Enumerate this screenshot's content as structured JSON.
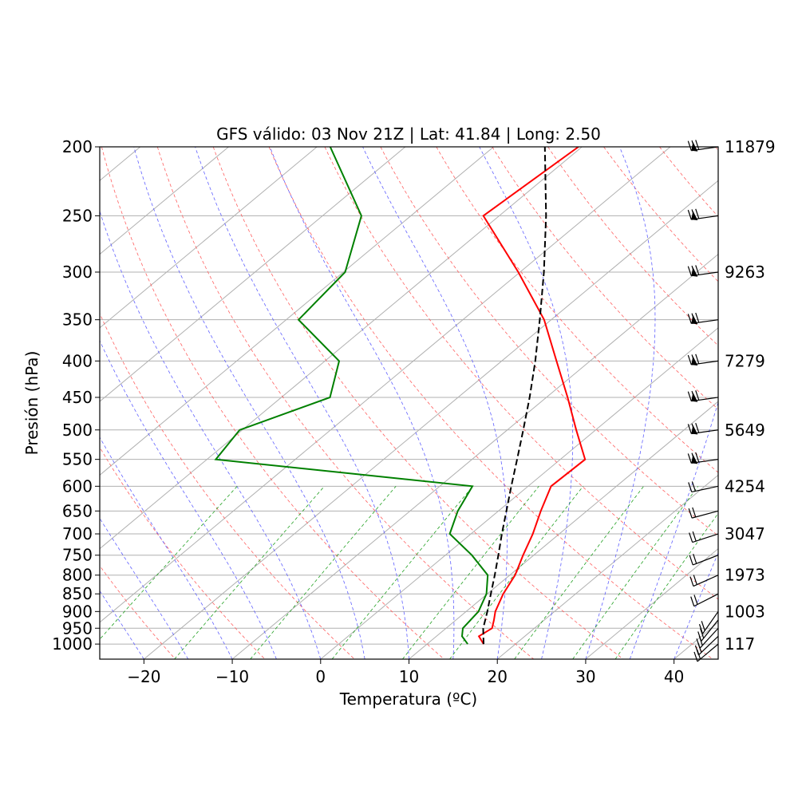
{
  "chart_data": {
    "type": "line",
    "title": "GFS válido: 03 Nov 21Z | Lat: 41.84 | Long: 2.50",
    "xlabel": "Temperatura (ºC)",
    "ylabel": "Presión (hPa)",
    "xlim": [
      -25,
      45
    ],
    "ylim": [
      1050,
      200
    ],
    "y_scale": "log",
    "skew": true,
    "x_ticks": [
      -20,
      -10,
      0,
      10,
      20,
      30,
      40
    ],
    "x_tick_labels": [
      "−20",
      "−10",
      "0",
      "10",
      "20",
      "30",
      "40"
    ],
    "y_ticks": [
      200,
      250,
      300,
      350,
      400,
      450,
      500,
      550,
      600,
      650,
      700,
      750,
      800,
      850,
      900,
      950,
      1000
    ],
    "y_tick_labels": [
      "200",
      "250",
      "300",
      "350",
      "400",
      "450",
      "500",
      "550",
      "600",
      "650",
      "700",
      "750",
      "800",
      "850",
      "900",
      "950",
      "1000"
    ],
    "grid": true,
    "series": [
      {
        "kind": "temperature",
        "color": "#ff0000",
        "points": [
          [
            1000,
            16.4
          ],
          [
            975,
            14.8
          ],
          [
            950,
            15.2
          ],
          [
            925,
            14.3
          ],
          [
            900,
            13.3
          ],
          [
            850,
            11.8
          ],
          [
            800,
            10.6
          ],
          [
            750,
            8.8
          ],
          [
            700,
            7.0
          ],
          [
            650,
            4.8
          ],
          [
            600,
            2.6
          ],
          [
            550,
            2.8
          ],
          [
            500,
            -2.2
          ],
          [
            450,
            -7.6
          ],
          [
            400,
            -13.8
          ],
          [
            350,
            -20.8
          ],
          [
            300,
            -30.2
          ],
          [
            250,
            -41.8
          ],
          [
            200,
            -40.4
          ]
        ]
      },
      {
        "kind": "dewpoint",
        "color": "#008000",
        "points": [
          [
            1000,
            14.6
          ],
          [
            975,
            12.9
          ],
          [
            950,
            11.9
          ],
          [
            900,
            11.4
          ],
          [
            850,
            9.9
          ],
          [
            800,
            7.5
          ],
          [
            750,
            3.0
          ],
          [
            700,
            -2.4
          ],
          [
            650,
            -4.6
          ],
          [
            600,
            -6.3
          ],
          [
            550,
            -39.0
          ],
          [
            500,
            -40.3
          ],
          [
            450,
            -34.5
          ],
          [
            400,
            -38.4
          ],
          [
            350,
            -48.6
          ],
          [
            300,
            -49.8
          ],
          [
            250,
            -55.6
          ],
          [
            200,
            -68.5
          ]
        ]
      },
      {
        "kind": "parcel",
        "color": "#000000",
        "points": [
          [
            1000,
            16.4
          ],
          [
            950,
            14.2
          ],
          [
            900,
            12.4
          ],
          [
            850,
            10.4
          ],
          [
            800,
            8.3
          ],
          [
            750,
            6.0
          ],
          [
            700,
            3.5
          ],
          [
            650,
            0.9
          ],
          [
            600,
            -1.9
          ],
          [
            550,
            -4.9
          ],
          [
            500,
            -8.2
          ],
          [
            450,
            -11.9
          ],
          [
            400,
            -16.2
          ],
          [
            350,
            -21.3
          ],
          [
            300,
            -27.3
          ],
          [
            250,
            -34.7
          ],
          [
            200,
            -44.2
          ]
        ]
      }
    ],
    "wind_barb_levels": [
      1000,
      975,
      950,
      925,
      900,
      850,
      800,
      750,
      700,
      650,
      600,
      550,
      500,
      450,
      400,
      350,
      300,
      250,
      200
    ],
    "height_labels": [
      {
        "p": 200,
        "text": "11879"
      },
      {
        "p": 300,
        "text": "9263"
      },
      {
        "p": 400,
        "text": "7279"
      },
      {
        "p": 500,
        "text": "5649"
      },
      {
        "p": 600,
        "text": "4254"
      },
      {
        "p": 700,
        "text": "3047"
      },
      {
        "p": 800,
        "text": "1973"
      },
      {
        "p": 900,
        "text": "1003"
      },
      {
        "p": 1000,
        "text": "117"
      }
    ]
  }
}
